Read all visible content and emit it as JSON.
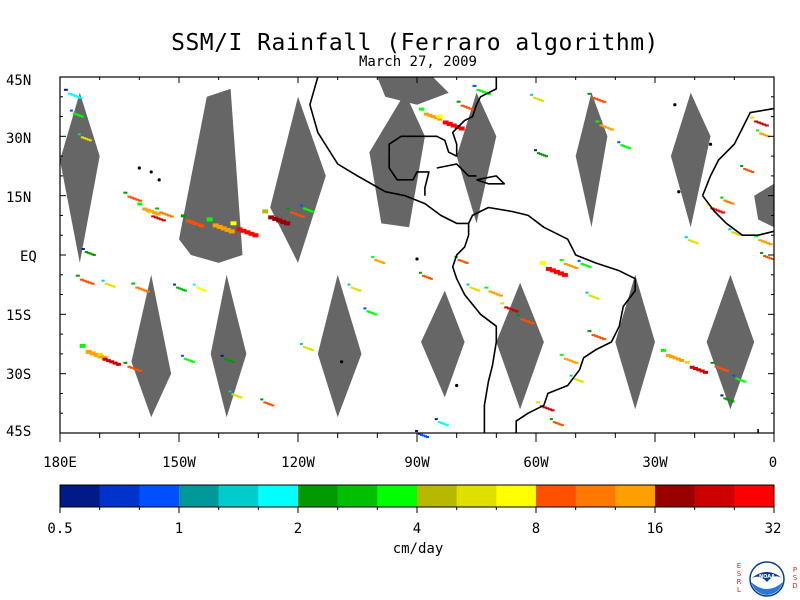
{
  "title": "SSM/I Rainfall (Ferraro algorithm)",
  "subtitle": "March 27, 2009",
  "lat_labels": [
    "45N",
    "30N",
    "15N",
    "EQ",
    "15S",
    "30S",
    "45S"
  ],
  "lon_labels": [
    "180E",
    "150W",
    "120W",
    "90W",
    "60W",
    "30W",
    "0"
  ],
  "colorbar": {
    "units": "cm/day",
    "tick_labels": [
      "0.5",
      "1",
      "2",
      "4",
      "8",
      "16",
      "32"
    ],
    "colors": [
      "#001a88",
      "#0033cc",
      "#0050ff",
      "#009999",
      "#00cccc",
      "#00ffff",
      "#009900",
      "#00c000",
      "#00ff00",
      "#b8b800",
      "#e0e000",
      "#ffff00",
      "#ff5000",
      "#ff7800",
      "#ffa000",
      "#990000",
      "#cc0000",
      "#ff0000"
    ]
  },
  "map": {
    "lat_range": [
      -45,
      45
    ],
    "lon_range": [
      -180,
      0
    ],
    "gap_color": "#666666"
  },
  "logo": {
    "left_letters": [
      "E",
      "S",
      "R",
      "L"
    ],
    "right_letters": [
      "P",
      "S",
      "D"
    ],
    "badge_text": "NOAA"
  }
}
